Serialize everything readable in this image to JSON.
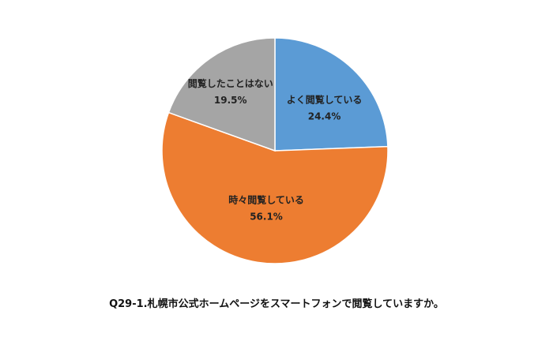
{
  "chart_data": {
    "type": "pie",
    "title": "Q29-1.札幌市公式ホームページをスマートフォンで閲覧していますか。",
    "slices": [
      {
        "label": "よく閲覧している",
        "value": 24.4,
        "value_label": "24.4%",
        "color": "#5b9bd5"
      },
      {
        "label": "時々閲覧している",
        "value": 56.1,
        "value_label": "56.1%",
        "color": "#ed7d31"
      },
      {
        "label": "閲覧したことはない",
        "value": 19.5,
        "value_label": "19.5%",
        "color": "#a5a5a5"
      }
    ],
    "start": "12 o'clock",
    "direction": "clockwise",
    "legend": "none"
  }
}
